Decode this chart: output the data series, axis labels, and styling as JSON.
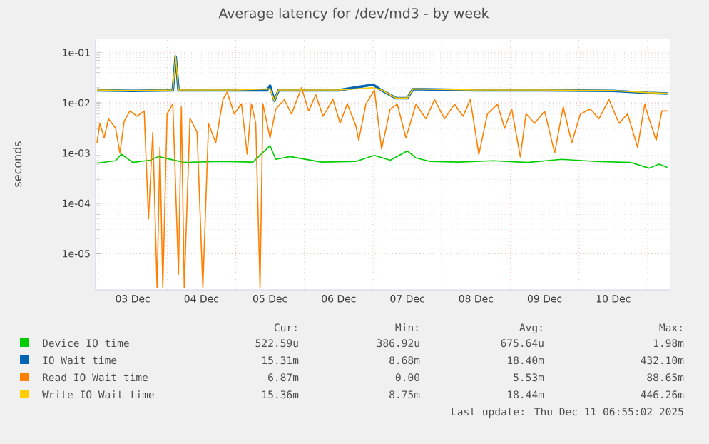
{
  "chart_data": {
    "type": "line",
    "title": "Average latency for /dev/md3 - by week",
    "ylabel": "seconds",
    "log": "y",
    "grid": true,
    "legend": "bottom",
    "xlim": [
      "2025-12-02T23:00",
      "2025-12-11T08:00"
    ],
    "ylim": [
      1.9e-06,
      0.19
    ],
    "yticks": [
      {
        "value": 1e-05,
        "label": "1e-05"
      },
      {
        "value": 0.0001,
        "label": "1e-04"
      },
      {
        "value": 0.001,
        "label": "1e-03"
      },
      {
        "value": 0.01,
        "label": "1e-02"
      },
      {
        "value": 0.1,
        "label": "1e-01"
      }
    ],
    "xticks": [
      {
        "value": "2025-12-03T00:00",
        "label": null
      },
      {
        "value": "2025-12-03T12:00",
        "label": "03 Dec"
      },
      {
        "value": "2025-12-04T00:00",
        "label": null
      },
      {
        "value": "2025-12-04T12:00",
        "label": "04 Dec"
      },
      {
        "value": "2025-12-05T00:00",
        "label": null
      },
      {
        "value": "2025-12-05T12:00",
        "label": "05 Dec"
      },
      {
        "value": "2025-12-06T00:00",
        "label": null
      },
      {
        "value": "2025-12-06T12:00",
        "label": "06 Dec"
      },
      {
        "value": "2025-12-07T00:00",
        "label": null
      },
      {
        "value": "2025-12-07T12:00",
        "label": "07 Dec"
      },
      {
        "value": "2025-12-08T00:00",
        "label": null
      },
      {
        "value": "2025-12-08T12:00",
        "label": "08 Dec"
      },
      {
        "value": "2025-12-09T00:00",
        "label": null
      },
      {
        "value": "2025-12-09T12:00",
        "label": "09 Dec"
      },
      {
        "value": "2025-12-10T00:00",
        "label": null
      },
      {
        "value": "2025-12-10T12:00",
        "label": "10 Dec"
      },
      {
        "value": "2025-12-11T00:00",
        "label": null
      }
    ],
    "series": [
      {
        "name": "Device IO time",
        "color": "#00cc00",
        "x": [
          "2025-12-02T23:30",
          "2025-12-03T06:00",
          "2025-12-03T08:00",
          "2025-12-03T12:00",
          "2025-12-03T18:00",
          "2025-12-03T21:00",
          "2025-12-04T06:00",
          "2025-12-04T18:00",
          "2025-12-05T06:00",
          "2025-12-05T12:00",
          "2025-12-05T14:00",
          "2025-12-05T19:00",
          "2025-12-06T06:00",
          "2025-12-06T18:00",
          "2025-12-07T00:30",
          "2025-12-07T06:00",
          "2025-12-07T12:00",
          "2025-12-07T15:00",
          "2025-12-07T20:00",
          "2025-12-08T06:00",
          "2025-12-08T18:00",
          "2025-12-09T06:00",
          "2025-12-09T18:00",
          "2025-12-10T06:00",
          "2025-12-10T18:00",
          "2025-12-11T00:30",
          "2025-12-11T04:00",
          "2025-12-11T06:55"
        ],
        "values": [
          0.00063,
          0.0007,
          0.00095,
          0.00065,
          0.00072,
          0.00085,
          0.00065,
          0.00068,
          0.00066,
          0.0014,
          0.00075,
          0.00085,
          0.00066,
          0.00068,
          0.0009,
          0.00072,
          0.0011,
          0.0008,
          0.00068,
          0.00066,
          0.0007,
          0.00065,
          0.00075,
          0.00068,
          0.00065,
          0.0005,
          0.0006,
          0.00052
        ]
      },
      {
        "name": "IO Wait time",
        "color": "#0066b3",
        "x": [
          "2025-12-02T23:30",
          "2025-12-03T12:00",
          "2025-12-04T02:00",
          "2025-12-04T03:00",
          "2025-12-04T04:00",
          "2025-12-05T00:00",
          "2025-12-05T11:00",
          "2025-12-05T12:00",
          "2025-12-05T13:30",
          "2025-12-05T15:00",
          "2025-12-06T12:00",
          "2025-12-07T00:00",
          "2025-12-07T03:00",
          "2025-12-07T08:00",
          "2025-12-07T12:00",
          "2025-12-07T14:00",
          "2025-12-08T12:00",
          "2025-12-09T12:00",
          "2025-12-10T12:00",
          "2025-12-11T00:00",
          "2025-12-11T06:55"
        ],
        "values": [
          0.0178,
          0.0173,
          0.0178,
          0.083,
          0.0178,
          0.0178,
          0.0178,
          0.022,
          0.011,
          0.0178,
          0.0178,
          0.023,
          0.0178,
          0.0124,
          0.0124,
          0.0188,
          0.0178,
          0.0178,
          0.0173,
          0.0158,
          0.0153
        ]
      },
      {
        "name": "Read IO Wait time",
        "color": "#ff8000",
        "x": [
          "2025-12-02T23:30",
          "2025-12-03T00:30",
          "2025-12-03T02:00",
          "2025-12-03T03:30",
          "2025-12-03T06:00",
          "2025-12-03T07:30",
          "2025-12-03T09:00",
          "2025-12-03T11:00",
          "2025-12-03T13:30",
          "2025-12-03T16:00",
          "2025-12-03T17:30",
          "2025-12-03T19:00",
          "2025-12-03T20:30",
          "2025-12-03T21:30",
          "2025-12-03T22:30",
          "2025-12-04T00:00",
          "2025-12-04T02:00",
          "2025-12-04T04:00",
          "2025-12-04T05:00",
          "2025-12-04T06:00",
          "2025-12-04T08:00",
          "2025-12-04T10:30",
          "2025-12-04T12:30",
          "2025-12-04T14:30",
          "2025-12-04T17:00",
          "2025-12-04T19:30",
          "2025-12-04T21:00",
          "2025-12-04T23:30",
          "2025-12-05T02:00",
          "2025-12-05T04:00",
          "2025-12-05T05:30",
          "2025-12-05T07:00",
          "2025-12-05T08:30",
          "2025-12-05T09:30",
          "2025-12-05T12:00",
          "2025-12-05T14:00",
          "2025-12-05T17:00",
          "2025-12-05T19:30",
          "2025-12-05T23:00",
          "2025-12-06T01:30",
          "2025-12-06T04:00",
          "2025-12-06T06:30",
          "2025-12-06T10:00",
          "2025-12-06T12:30",
          "2025-12-06T15:00",
          "2025-12-06T18:00",
          "2025-12-06T19:00",
          "2025-12-06T21:30",
          "2025-12-07T00:30",
          "2025-12-07T03:00",
          "2025-12-07T06:00",
          "2025-12-07T08:30",
          "2025-12-07T11:30",
          "2025-12-07T15:00",
          "2025-12-07T18:30",
          "2025-12-07T21:30",
          "2025-12-08T01:00",
          "2025-12-08T04:30",
          "2025-12-08T07:30",
          "2025-12-08T10:00",
          "2025-12-08T13:00",
          "2025-12-08T16:00",
          "2025-12-08T19:30",
          "2025-12-08T22:00",
          "2025-12-09T00:30",
          "2025-12-09T03:30",
          "2025-12-09T05:30",
          "2025-12-09T08:30",
          "2025-12-09T12:00",
          "2025-12-09T15:30",
          "2025-12-09T18:30",
          "2025-12-09T21:30",
          "2025-12-10T00:30",
          "2025-12-10T04:00",
          "2025-12-10T07:00",
          "2025-12-10T10:30",
          "2025-12-10T14:00",
          "2025-12-10T17:00",
          "2025-12-10T20:30",
          "2025-12-10T23:00",
          "2025-12-11T00:30",
          "2025-12-11T03:00",
          "2025-12-11T05:00",
          "2025-12-11T06:55"
        ],
        "values": [
          0.0016,
          0.0039,
          0.002,
          0.0048,
          0.0031,
          0.001,
          0.0043,
          0.0069,
          0.0054,
          0.0069,
          4.9e-05,
          0.0026,
          2.1e-06,
          0.0013,
          2.1e-06,
          0.006,
          0.0096,
          3.9e-06,
          0.0083,
          2.1e-06,
          0.0049,
          0.0026,
          2.1e-06,
          0.0038,
          0.0016,
          0.0116,
          0.0162,
          0.006,
          0.0096,
          0.00095,
          0.0096,
          0.0039,
          2.1e-06,
          0.0096,
          0.002,
          0.0075,
          0.0116,
          0.006,
          0.02,
          0.0069,
          0.0145,
          0.0054,
          0.0116,
          0.0039,
          0.0096,
          0.0035,
          0.0018,
          0.0094,
          0.018,
          0.0012,
          0.0075,
          0.0094,
          0.002,
          0.0094,
          0.0048,
          0.0116,
          0.0048,
          0.0094,
          0.0054,
          0.0116,
          0.00094,
          0.006,
          0.0094,
          0.0031,
          0.0075,
          0.00084,
          0.006,
          0.0039,
          0.0068,
          0.001,
          0.0083,
          0.0016,
          0.006,
          0.0075,
          0.0048,
          0.0116,
          0.0039,
          0.006,
          0.0013,
          0.0094,
          0.0048,
          0.0018,
          0.0069,
          0.0069
        ]
      },
      {
        "name": "Write IO Wait time",
        "color": "#ffcc00",
        "x": [
          "2025-12-02T23:30",
          "2025-12-03T12:00",
          "2025-12-04T02:00",
          "2025-12-04T03:00",
          "2025-12-04T04:00",
          "2025-12-05T00:00",
          "2025-12-05T12:00",
          "2025-12-05T13:30",
          "2025-12-05T15:00",
          "2025-12-06T12:00",
          "2025-12-07T00:00",
          "2025-12-07T03:00",
          "2025-12-07T08:00",
          "2025-12-07T12:00",
          "2025-12-07T14:00",
          "2025-12-08T12:00",
          "2025-12-09T12:00",
          "2025-12-10T12:00",
          "2025-12-11T00:00",
          "2025-12-11T06:55"
        ],
        "values": [
          0.018,
          0.0175,
          0.018,
          0.084,
          0.018,
          0.018,
          0.019,
          0.011,
          0.018,
          0.018,
          0.02,
          0.018,
          0.0125,
          0.0125,
          0.019,
          0.018,
          0.018,
          0.0175,
          0.016,
          0.0154
        ]
      }
    ],
    "annotations": [
      "Cur:",
      "Min:",
      "Avg:",
      "Max:",
      "522.59u",
      "386.92u",
      "675.64u",
      "1.98m",
      "15.31m",
      "8.68m",
      "18.40m",
      "432.10m",
      "6.87m",
      "0.00",
      "5.53m",
      "88.65m",
      "15.36m",
      "8.75m",
      "18.44m",
      "446.26m",
      "Last update: Thu Dec 11 06:55:02 2025"
    ]
  }
}
